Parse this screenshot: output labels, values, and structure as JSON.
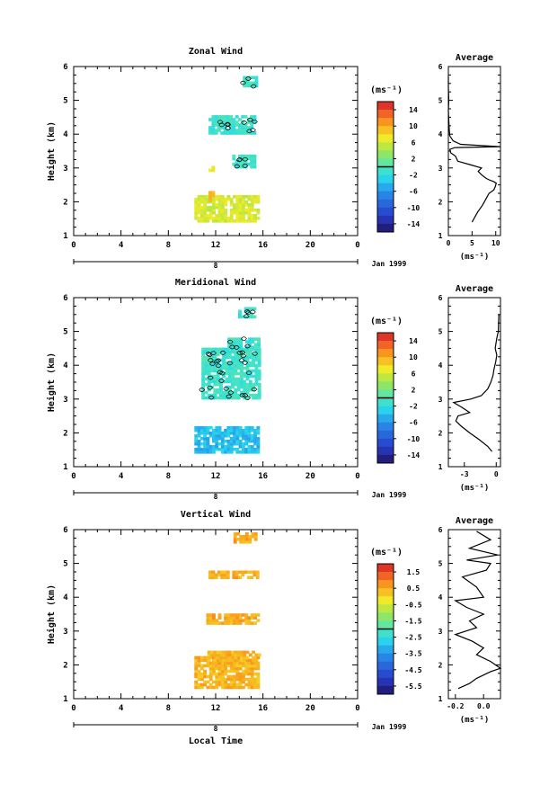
{
  "common": {
    "ylabel": "Height (km)",
    "xlabel": "Local Time",
    "date_label": "Jan 1999",
    "day_label": "8",
    "units": "(ms⁻¹)",
    "xticks": [
      "0",
      "4",
      "8",
      "12",
      "16",
      "20",
      "0"
    ],
    "yticks": [
      "1",
      "2",
      "3",
      "4",
      "5",
      "6"
    ],
    "avg_title": "Average"
  },
  "chart_data": [
    {
      "type": "heatmap",
      "title": "Zonal Wind",
      "xlabel": "",
      "ylabel": "Height (km)",
      "xlim": [
        0,
        24
      ],
      "ylim": [
        1,
        6
      ],
      "colorbar": {
        "ticks": [
          "14",
          "10",
          "6",
          "2",
          "-2",
          "-6",
          "-10",
          "-14"
        ],
        "min": -16,
        "max": 16
      },
      "regions": [
        {
          "t": [
            10.2,
            15.6
          ],
          "h": [
            1.4,
            2.2
          ],
          "value": 6
        },
        {
          "t": [
            11.4,
            11.8
          ],
          "h": [
            2.0,
            2.3
          ],
          "value": 9
        },
        {
          "t": [
            11.4,
            11.7
          ],
          "h": [
            2.9,
            3.2
          ],
          "value": 7
        },
        {
          "t": [
            13.4,
            15.3
          ],
          "h": [
            3.0,
            3.4
          ],
          "value": -1
        },
        {
          "t": [
            11.4,
            15.4
          ],
          "h": [
            4.0,
            4.5
          ],
          "value": -1
        },
        {
          "t": [
            14.3,
            15.4
          ],
          "h": [
            5.4,
            5.7
          ],
          "value": -1
        }
      ],
      "average_profile": {
        "xlim": [
          0,
          11
        ],
        "xticks": [
          "0",
          "5",
          "10"
        ],
        "x": [
          5.0,
          5.6,
          6.2,
          7.2,
          8.0,
          8.6,
          9.6,
          9.9,
          10.1,
          9.5,
          8.6,
          7.9,
          7.0,
          6.3,
          7.0,
          4.5,
          2.0,
          1.5,
          0.5,
          0.3,
          1.3,
          10.9,
          2.6,
          1.0,
          0.3,
          0.2,
          0.1,
          0.0,
          0.1,
          0.0,
          0.0
        ],
        "y": [
          1.4,
          1.55,
          1.7,
          1.9,
          2.1,
          2.25,
          2.35,
          2.45,
          2.55,
          2.6,
          2.65,
          2.7,
          2.8,
          2.9,
          3.0,
          3.1,
          3.2,
          3.35,
          3.45,
          3.55,
          3.6,
          3.63,
          3.7,
          3.8,
          3.95,
          4.1,
          4.4,
          4.7,
          5.0,
          5.4,
          5.7
        ]
      }
    },
    {
      "type": "heatmap",
      "title": "Meridional Wind",
      "xlabel": "",
      "ylabel": "Height (km)",
      "xlim": [
        0,
        24
      ],
      "ylim": [
        1,
        6
      ],
      "colorbar": {
        "ticks": [
          "14",
          "10",
          "6",
          "2",
          "-2",
          "-6",
          "-10",
          "-14"
        ],
        "min": -16,
        "max": 16
      },
      "regions": [
        {
          "t": [
            10.2,
            15.7
          ],
          "h": [
            1.4,
            2.2
          ],
          "value": -4
        },
        {
          "t": [
            10.8,
            15.6
          ],
          "h": [
            3.0,
            4.5
          ],
          "value": -1
        },
        {
          "t": [
            13.0,
            15.6
          ],
          "h": [
            4.5,
            4.8
          ],
          "value": -1
        },
        {
          "t": [
            13.9,
            15.4
          ],
          "h": [
            5.4,
            5.7
          ],
          "value": -1
        }
      ],
      "average_profile": {
        "xlim": [
          -4.5,
          0.4
        ],
        "xticks": [
          "-3",
          "0"
        ],
        "x": [
          -0.4,
          -0.8,
          -1.6,
          -2.5,
          -3.3,
          -3.8,
          -3.6,
          -2.5,
          -3.2,
          -4.0,
          -2.4,
          -1.4,
          -0.8,
          -0.5,
          -0.3,
          -0.2,
          -0.05,
          0.05,
          -0.1,
          0.05,
          0.2,
          0.25
        ],
        "y": [
          1.45,
          1.6,
          1.8,
          2.0,
          2.2,
          2.35,
          2.5,
          2.6,
          2.75,
          2.9,
          3.0,
          3.1,
          3.3,
          3.5,
          3.7,
          3.9,
          4.1,
          4.3,
          4.5,
          4.8,
          5.0,
          5.5
        ]
      }
    },
    {
      "type": "heatmap",
      "title": "Vertical Wind",
      "xlabel": "Local Time",
      "ylabel": "Height (km)",
      "xlim": [
        0,
        24
      ],
      "ylim": [
        1,
        6
      ],
      "colorbar": {
        "ticks": [
          "1.5",
          "0.5",
          "-0.5",
          "-1.5",
          "-2.5",
          "-3.5",
          "-4.5",
          "-5.5"
        ],
        "min": -6,
        "max": 2
      },
      "regions": [
        {
          "t": [
            10.2,
            15.7
          ],
          "h": [
            1.3,
            2.2
          ],
          "value": 0.4
        },
        {
          "t": [
            11.3,
            15.6
          ],
          "h": [
            2.1,
            2.4
          ],
          "value": 0.4
        },
        {
          "t": [
            11.2,
            15.5
          ],
          "h": [
            3.2,
            3.5
          ],
          "value": 0.5
        },
        {
          "t": [
            11.4,
            15.5
          ],
          "h": [
            4.55,
            4.75
          ],
          "value": 0.5
        },
        {
          "t": [
            13.5,
            15.5
          ],
          "h": [
            5.6,
            5.9
          ],
          "value": 0.5
        }
      ],
      "average_profile": {
        "xlim": [
          -0.25,
          0.12
        ],
        "xticks": [
          "-0.2",
          "0.0"
        ],
        "x": [
          -0.18,
          -0.1,
          -0.05,
          0.0,
          0.05,
          0.12,
          0.05,
          -0.05,
          0.0,
          -0.08,
          -0.2,
          -0.05,
          -0.1,
          0.0,
          -0.12,
          -0.2,
          0.0,
          -0.05,
          -0.15,
          0.02,
          0.05,
          -0.12,
          0.1,
          -0.1,
          0.05,
          -0.05
        ],
        "y": [
          1.3,
          1.45,
          1.6,
          1.7,
          1.8,
          1.9,
          2.1,
          2.3,
          2.5,
          2.7,
          2.9,
          3.1,
          3.3,
          3.5,
          3.7,
          3.9,
          4.0,
          4.3,
          4.6,
          4.8,
          5.0,
          5.1,
          5.25,
          5.45,
          5.7,
          5.95
        ]
      }
    }
  ]
}
